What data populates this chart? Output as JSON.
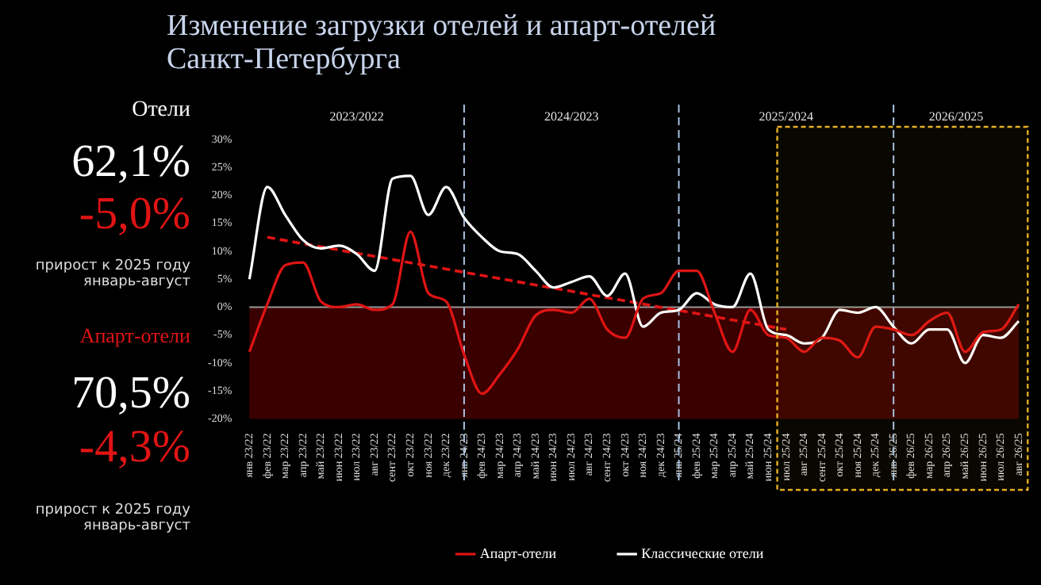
{
  "chart_data": [
    {
      "type": "other",
      "annotations": [
        "Отели",
        "62,1%",
        "-5,0%",
        "прирост к 2025 году\nянварь-август",
        "Апарт-отели",
        "70,5%",
        "-4,3%",
        "прирост к 2025 году\nянварь-август"
      ]
    },
    {
      "type": "line",
      "title": "Изменение загрузки отелей и апарт-отелей\nСанкт-Петербурга",
      "categories": [
        "янв 23/22",
        "фев 23/22",
        "мар 23/22",
        "апр 23/22",
        "май 23/22",
        "июн 23/22",
        "июл 23/22",
        "авг 23/22",
        "сент 23/22",
        "окт 23/22",
        "ноя 23/22",
        "дек 23/22",
        "янв 24/23",
        "фев 24/23",
        "мар 24/23",
        "апр 24/23",
        "май 24/23",
        "июн 24/23",
        "июл 24/23",
        "авг 24/23",
        "сент 24/23",
        "окт 24/23",
        "ноя 24/23",
        "дек 24/23",
        "янв 25/24",
        "фев 25/24",
        "мар 25/24",
        "апр 25/24",
        "май 25/24",
        "июн 25/24",
        "июл 25/24",
        "авг 25/24",
        "сент 25/24",
        "окт 25/24",
        "ноя 25/24",
        "дек 25/24",
        "янв 26/25",
        "фев 26/25",
        "мар 26/25",
        "апр 26/25",
        "май 26/25",
        "июн 26/25",
        "июл 26/25",
        "авг 26/25"
      ],
      "series": [
        {
          "name": "Апарт-отели",
          "color": "#e01414",
          "values": [
            -8,
            0.5,
            7.5,
            8,
            1,
            0,
            0.5,
            -0.5,
            0.5,
            13.5,
            2.5,
            1,
            -8.5,
            -15.5,
            -12,
            -7.5,
            -1.5,
            -0.5,
            -1,
            1.5,
            -4,
            -5.5,
            1.5,
            2.5,
            6.5,
            6.5,
            -1,
            -8,
            -0.5,
            -5,
            -5.5,
            -8,
            -5.5,
            -6,
            -9,
            -3.5,
            -4,
            -5,
            -2.5,
            -1,
            -8,
            -4.5,
            -4,
            0.5
          ]
        },
        {
          "name": "Классические отели",
          "color": "#ffffff",
          "values": [
            5,
            21.5,
            16.5,
            12,
            10.5,
            11,
            9.5,
            6.5,
            23,
            23.5,
            16.5,
            21.5,
            16,
            12.5,
            10,
            9.5,
            6.5,
            3.5,
            4.5,
            5.5,
            2,
            6,
            -3.5,
            -1,
            -0.5,
            2.5,
            0.5,
            0,
            6,
            -4,
            -5,
            -6.5,
            -5.5,
            -0.5,
            -1,
            0,
            -3.5,
            -6.5,
            -4,
            -4,
            -10,
            -5,
            -5.5,
            -2.5
          ]
        },
        {
          "type": "line",
          "color": "#e01414",
          "line_style": "dashed",
          "x": [
            "фев 23/22",
            "июл 25/24"
          ],
          "values": [
            12.5,
            -4
          ]
        }
      ],
      "ylim": [
        -20,
        30
      ],
      "yticks": [
        {
          "value": -20,
          "label": "-20%"
        },
        {
          "value": -15,
          "label": "-15%"
        },
        {
          "value": -10,
          "label": "-10%"
        },
        {
          "value": -5,
          "label": "-5%"
        },
        {
          "value": 0,
          "label": "0%"
        },
        {
          "value": 5,
          "label": "5%"
        },
        {
          "value": 10,
          "label": "10%"
        },
        {
          "value": 15,
          "label": "15%"
        },
        {
          "value": 20,
          "label": "20%"
        },
        {
          "value": 25,
          "label": "25%"
        },
        {
          "value": 30,
          "label": "30%"
        }
      ],
      "bands": [
        {
          "axis": "y",
          "from": -20,
          "to": 0,
          "color": "#3a0000"
        },
        {
          "axis": "x",
          "from": "июл 25/24",
          "to": "авг 26/25",
          "color": "#e8b020"
        }
      ],
      "annotations": [
        "2023/2022",
        "2024/2023",
        "2025/2024",
        "2026/2025"
      ],
      "ref_lines": [
        {
          "axis": "y",
          "value": 0,
          "color": "#9a9a9a"
        },
        {
          "axis": "x",
          "value": "янв 24/23",
          "color": "#a8c0e0",
          "line_style": "dashed"
        },
        {
          "axis": "x",
          "value": "янв 25/24",
          "color": "#a8c0e0",
          "line_style": "dashed"
        },
        {
          "axis": "x",
          "value": "янв 26/25",
          "color": "#a8c0e0",
          "line_style": "dashed"
        }
      ],
      "legend": "bottom",
      "grid": false,
      "marker": "none",
      "line_style": "solid"
    }
  ]
}
